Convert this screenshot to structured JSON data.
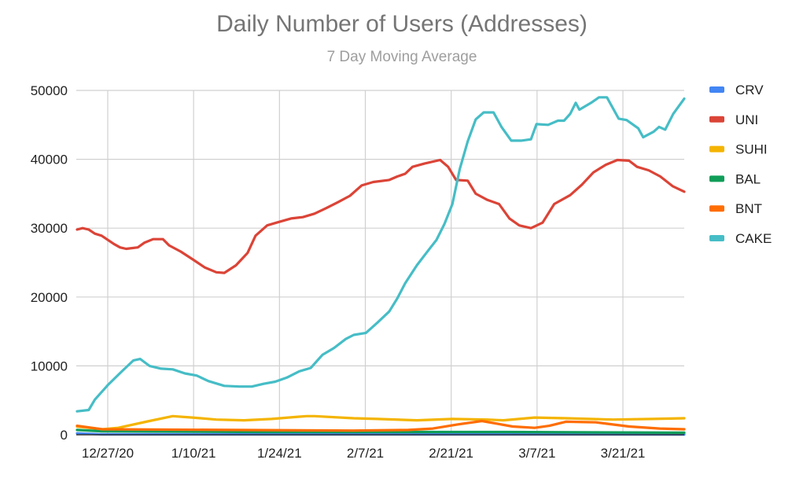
{
  "chart_data": {
    "type": "line",
    "title": "Daily Number of Users (Addresses)",
    "subtitle": "7 Day Moving Average",
    "xlabel": "",
    "ylabel": "",
    "x_unit": "days since 12/22/20",
    "xlim": [
      0,
      99
    ],
    "ylim": [
      0,
      50000
    ],
    "y_ticks": [
      "0",
      "10000",
      "20000",
      "30000",
      "40000",
      "50000"
    ],
    "y_tick_values": [
      0,
      10000,
      20000,
      30000,
      40000,
      50000
    ],
    "x_ticks": [
      "12/27/20",
      "1/10/21",
      "1/24/21",
      "2/7/21",
      "2/21/21",
      "3/7/21",
      "3/21/21"
    ],
    "x_tick_days": [
      5,
      19,
      33,
      47,
      61,
      75,
      89
    ],
    "grid": true,
    "legend_position": "right",
    "series": [
      {
        "name": "CRV",
        "color": "#4285f4",
        "points": [
          [
            0,
            200
          ],
          [
            4,
            60
          ],
          [
            99,
            40
          ]
        ]
      },
      {
        "name": "UNI",
        "color": "#db4437",
        "points": [
          [
            0,
            29800
          ],
          [
            0.9,
            30000
          ],
          [
            1.9,
            29800
          ],
          [
            2.9,
            29200
          ],
          [
            4,
            28900
          ],
          [
            5,
            28300
          ],
          [
            6,
            27700
          ],
          [
            7,
            27200
          ],
          [
            8,
            27000
          ],
          [
            9.9,
            27200
          ],
          [
            11,
            27900
          ],
          [
            12.4,
            28400
          ],
          [
            14,
            28400
          ],
          [
            15,
            27500
          ],
          [
            16.9,
            26600
          ],
          [
            18.8,
            25500
          ],
          [
            20.8,
            24300
          ],
          [
            22.7,
            23600
          ],
          [
            24,
            23500
          ],
          [
            25.9,
            24600
          ],
          [
            27.8,
            26400
          ],
          [
            29.1,
            28900
          ],
          [
            31,
            30400
          ],
          [
            32.9,
            30900
          ],
          [
            34.9,
            31400
          ],
          [
            36.8,
            31600
          ],
          [
            38.7,
            32100
          ],
          [
            40.6,
            32900
          ],
          [
            42.6,
            33800
          ],
          [
            44.5,
            34700
          ],
          [
            46.4,
            36200
          ],
          [
            48.3,
            36700
          ],
          [
            50.9,
            37000
          ],
          [
            52.2,
            37500
          ],
          [
            53.5,
            37900
          ],
          [
            54.7,
            38900
          ],
          [
            56.7,
            39400
          ],
          [
            59.2,
            39900
          ],
          [
            60.5,
            38900
          ],
          [
            61.8,
            37000
          ],
          [
            63.7,
            36900
          ],
          [
            65,
            35000
          ],
          [
            66.9,
            34100
          ],
          [
            68.8,
            33500
          ],
          [
            70.5,
            31400
          ],
          [
            72.1,
            30400
          ],
          [
            74,
            30000
          ],
          [
            75.9,
            30800
          ],
          [
            77.8,
            33500
          ],
          [
            80.4,
            34800
          ],
          [
            82.3,
            36300
          ],
          [
            84.2,
            38100
          ],
          [
            86.2,
            39200
          ],
          [
            88.1,
            39900
          ],
          [
            90,
            39800
          ],
          [
            91.3,
            38900
          ],
          [
            93.2,
            38400
          ],
          [
            95.1,
            37500
          ],
          [
            97.1,
            36100
          ],
          [
            99,
            35300
          ]
        ]
      },
      {
        "name": "SUHI",
        "color": "#f4b400",
        "points": [
          [
            0,
            1200
          ],
          [
            4.1,
            800
          ],
          [
            6.7,
            1000
          ],
          [
            11.8,
            2000
          ],
          [
            15.6,
            2700
          ],
          [
            18.8,
            2500
          ],
          [
            22.7,
            2200
          ],
          [
            27.2,
            2100
          ],
          [
            31.7,
            2300
          ],
          [
            37.4,
            2700
          ],
          [
            38.7,
            2700
          ],
          [
            45.1,
            2400
          ],
          [
            49,
            2300
          ],
          [
            55.4,
            2100
          ],
          [
            61.2,
            2300
          ],
          [
            66.9,
            2200
          ],
          [
            69.5,
            2100
          ],
          [
            74.6,
            2500
          ],
          [
            79.7,
            2400
          ],
          [
            87.4,
            2200
          ],
          [
            93.8,
            2300
          ],
          [
            99,
            2400
          ]
        ]
      },
      {
        "name": "BAL",
        "color": "#0f9d58",
        "points": [
          [
            0,
            700
          ],
          [
            4,
            500
          ],
          [
            30,
            400
          ],
          [
            70,
            400
          ],
          [
            99,
            300
          ]
        ]
      },
      {
        "name": "BNT",
        "color": "#ff6d01",
        "points": [
          [
            0,
            1300
          ],
          [
            4.1,
            800
          ],
          [
            45,
            600
          ],
          [
            54,
            700
          ],
          [
            58,
            900
          ],
          [
            62,
            1500
          ],
          [
            66,
            2000
          ],
          [
            71,
            1200
          ],
          [
            74.6,
            1000
          ],
          [
            77,
            1300
          ],
          [
            79.7,
            1900
          ],
          [
            84.6,
            1800
          ],
          [
            90,
            1200
          ],
          [
            95,
            900
          ],
          [
            99,
            800
          ]
        ]
      },
      {
        "name": "CAKE",
        "color": "#46bdc6",
        "points": [
          [
            0,
            3400
          ],
          [
            1.9,
            3600
          ],
          [
            2.9,
            5100
          ],
          [
            5,
            7200
          ],
          [
            7.3,
            9200
          ],
          [
            9.2,
            10800
          ],
          [
            10.3,
            11000
          ],
          [
            11.8,
            10000
          ],
          [
            13.7,
            9600
          ],
          [
            15.6,
            9500
          ],
          [
            17.6,
            8900
          ],
          [
            19.5,
            8600
          ],
          [
            21.4,
            7800
          ],
          [
            24,
            7100
          ],
          [
            26.5,
            7000
          ],
          [
            28.5,
            7000
          ],
          [
            30.4,
            7400
          ],
          [
            32.3,
            7700
          ],
          [
            34.2,
            8300
          ],
          [
            36.2,
            9200
          ],
          [
            38.1,
            9700
          ],
          [
            40,
            11600
          ],
          [
            41.9,
            12600
          ],
          [
            43.8,
            13900
          ],
          [
            45.1,
            14500
          ],
          [
            47.1,
            14800
          ],
          [
            49,
            16300
          ],
          [
            50.9,
            17900
          ],
          [
            52.2,
            19800
          ],
          [
            53.5,
            22000
          ],
          [
            55.4,
            24600
          ],
          [
            57.3,
            26800
          ],
          [
            58.6,
            28300
          ],
          [
            59.9,
            30600
          ],
          [
            61.2,
            33500
          ],
          [
            62.4,
            38600
          ],
          [
            63.7,
            42600
          ],
          [
            65,
            45800
          ],
          [
            66.3,
            46800
          ],
          [
            67.9,
            46800
          ],
          [
            69.2,
            44700
          ],
          [
            70.8,
            42700
          ],
          [
            72.4,
            42700
          ],
          [
            74,
            42900
          ],
          [
            74.9,
            45100
          ],
          [
            76.8,
            45000
          ],
          [
            78.4,
            45600
          ],
          [
            79.4,
            45600
          ],
          [
            80.4,
            46600
          ],
          [
            81.3,
            48200
          ],
          [
            81.9,
            47200
          ],
          [
            83.8,
            48200
          ],
          [
            85.1,
            49000
          ],
          [
            86.4,
            49000
          ],
          [
            88.3,
            45900
          ],
          [
            89.6,
            45700
          ],
          [
            91.5,
            44500
          ],
          [
            92.3,
            43200
          ],
          [
            94,
            44000
          ],
          [
            94.9,
            44700
          ],
          [
            95.9,
            44300
          ],
          [
            97.2,
            46600
          ],
          [
            99,
            48800
          ]
        ]
      }
    ]
  }
}
